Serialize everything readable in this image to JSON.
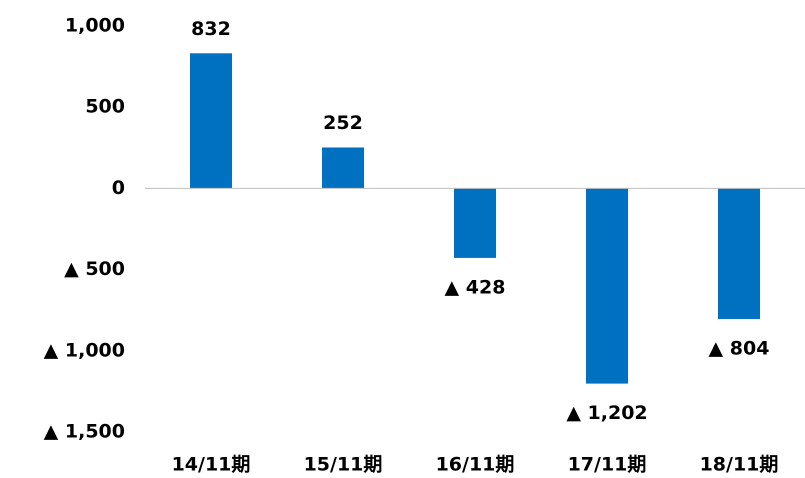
{
  "chart_data": {
    "type": "bar",
    "categories": [
      "14/11期",
      "15/11期",
      "16/11期",
      "17/11期",
      "18/11期"
    ],
    "values": [
      832,
      252,
      -428,
      -1202,
      -804
    ],
    "value_labels": [
      "832",
      "252",
      "▲ 428",
      "▲ 1,202",
      "▲ 804"
    ],
    "color": "#0070c0",
    "ylim": [
      -1500,
      1000
    ],
    "yticks": [
      {
        "value": 1000,
        "label": "1,000"
      },
      500,
      0,
      {
        "value": -500,
        "label": "▲ 500"
      },
      {
        "value": -1000,
        "label": "▲ 1,000"
      },
      {
        "value": -1500,
        "label": "▲ 1,500"
      }
    ],
    "grid": false
  }
}
